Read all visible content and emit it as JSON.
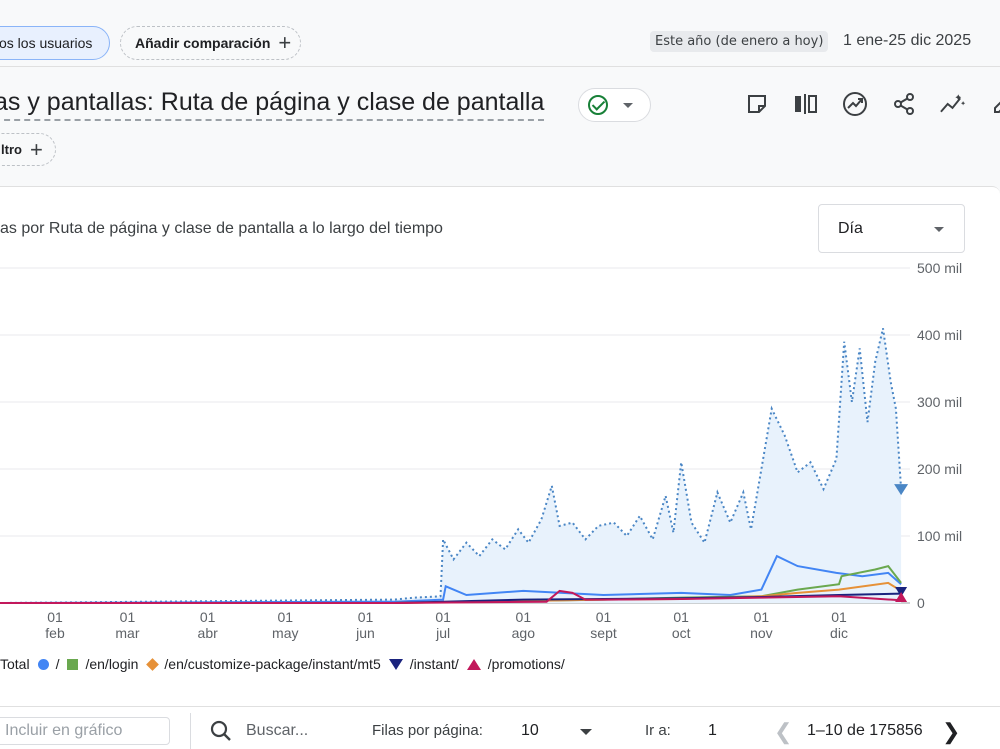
{
  "filters": {
    "segment_label": "os los usuarios",
    "add_comparison_label": "Añadir comparación",
    "date_preset": "Este año (de enero a hoy)",
    "date_range": "1 ene-25 dic 2025"
  },
  "header": {
    "title": "as y pantallas: Ruta de página y clase de pantalla",
    "filter_label": "ltro"
  },
  "toolbar": {
    "icons": [
      "note-icon",
      "compare-icon",
      "insights-icon",
      "share-icon",
      "trend-icon",
      "edit-icon"
    ]
  },
  "card": {
    "title": "as por Ruta de página y clase de pantalla a lo largo del tiempo",
    "granularity": "Día"
  },
  "colors": {
    "total": "#4a86c5",
    "root": "#4285f4",
    "login": "#6aa84f",
    "mt5": "#e69138",
    "instant": "#1a237e",
    "promotions": "#c2185b"
  },
  "chart_data": {
    "type": "line",
    "y_tick_labels": [
      "0",
      "100 mil",
      "200 mil",
      "300 mil",
      "400 mil",
      "500 mil"
    ],
    "ylim": [
      0,
      500000
    ],
    "x_tick_labels": [
      [
        "01",
        "feb"
      ],
      [
        "01",
        "mar"
      ],
      [
        "01",
        "abr"
      ],
      [
        "01",
        "may"
      ],
      [
        "01",
        "jun"
      ],
      [
        "01",
        "jul"
      ],
      [
        "01",
        "ago"
      ],
      [
        "01",
        "sept"
      ],
      [
        "01",
        "oct"
      ],
      [
        "01",
        "nov"
      ],
      [
        "01",
        "dic"
      ]
    ],
    "x_range": [
      "2025-01-01",
      "2025-12-25"
    ],
    "series": [
      {
        "name": "Total",
        "style": "dotted-area",
        "points": [
          [
            "2025-06-12",
            5000
          ],
          [
            "2025-06-20",
            8000
          ],
          [
            "2025-06-30",
            10000
          ],
          [
            "2025-07-01",
            95000
          ],
          [
            "2025-07-05",
            65000
          ],
          [
            "2025-07-10",
            90000
          ],
          [
            "2025-07-15",
            70000
          ],
          [
            "2025-07-20",
            95000
          ],
          [
            "2025-07-25",
            80000
          ],
          [
            "2025-07-30",
            110000
          ],
          [
            "2025-08-03",
            90000
          ],
          [
            "2025-08-08",
            125000
          ],
          [
            "2025-08-12",
            175000
          ],
          [
            "2025-08-15",
            115000
          ],
          [
            "2025-08-20",
            120000
          ],
          [
            "2025-08-25",
            95000
          ],
          [
            "2025-08-30",
            115000
          ],
          [
            "2025-09-05",
            120000
          ],
          [
            "2025-09-10",
            100000
          ],
          [
            "2025-09-15",
            130000
          ],
          [
            "2025-09-20",
            95000
          ],
          [
            "2025-09-25",
            160000
          ],
          [
            "2025-09-28",
            105000
          ],
          [
            "2025-10-01",
            210000
          ],
          [
            "2025-10-05",
            120000
          ],
          [
            "2025-10-10",
            90000
          ],
          [
            "2025-10-15",
            165000
          ],
          [
            "2025-10-20",
            120000
          ],
          [
            "2025-10-25",
            165000
          ],
          [
            "2025-10-28",
            110000
          ],
          [
            "2025-11-01",
            200000
          ],
          [
            "2025-11-05",
            290000
          ],
          [
            "2025-11-10",
            250000
          ],
          [
            "2025-11-15",
            195000
          ],
          [
            "2025-11-20",
            210000
          ],
          [
            "2025-11-25",
            170000
          ],
          [
            "2025-11-30",
            215000
          ],
          [
            "2025-12-03",
            390000
          ],
          [
            "2025-12-06",
            300000
          ],
          [
            "2025-12-09",
            380000
          ],
          [
            "2025-12-12",
            270000
          ],
          [
            "2025-12-15",
            360000
          ],
          [
            "2025-12-18",
            410000
          ],
          [
            "2025-12-21",
            330000
          ],
          [
            "2025-12-23",
            290000
          ],
          [
            "2025-12-25",
            170000
          ]
        ]
      },
      {
        "name": "/",
        "style": "line",
        "points": [
          [
            "2025-06-12",
            2000
          ],
          [
            "2025-07-01",
            5000
          ],
          [
            "2025-07-02",
            25000
          ],
          [
            "2025-07-10",
            12000
          ],
          [
            "2025-08-01",
            18000
          ],
          [
            "2025-09-01",
            12000
          ],
          [
            "2025-10-01",
            15000
          ],
          [
            "2025-10-20",
            12000
          ],
          [
            "2025-11-01",
            20000
          ],
          [
            "2025-11-07",
            70000
          ],
          [
            "2025-11-15",
            55000
          ],
          [
            "2025-11-30",
            45000
          ],
          [
            "2025-12-10",
            40000
          ],
          [
            "2025-12-20",
            45000
          ],
          [
            "2025-12-25",
            28000
          ]
        ]
      },
      {
        "name": "/en/login",
        "style": "line",
        "points": [
          [
            "2025-06-12",
            0
          ],
          [
            "2025-09-01",
            5000
          ],
          [
            "2025-10-01",
            8000
          ],
          [
            "2025-11-01",
            10000
          ],
          [
            "2025-11-15",
            20000
          ],
          [
            "2025-12-01",
            28000
          ],
          [
            "2025-12-02",
            40000
          ],
          [
            "2025-12-15",
            50000
          ],
          [
            "2025-12-20",
            55000
          ],
          [
            "2025-12-25",
            30000
          ]
        ]
      },
      {
        "name": "/en/customize-package/instant/mt5",
        "style": "line",
        "points": [
          [
            "2025-06-12",
            0
          ],
          [
            "2025-08-01",
            3000
          ],
          [
            "2025-09-01",
            5000
          ],
          [
            "2025-10-01",
            6000
          ],
          [
            "2025-11-01",
            10000
          ],
          [
            "2025-11-15",
            15000
          ],
          [
            "2025-12-01",
            20000
          ],
          [
            "2025-12-20",
            30000
          ],
          [
            "2025-12-25",
            18000
          ]
        ]
      },
      {
        "name": "/instant/",
        "style": "line",
        "points": [
          [
            "2025-06-12",
            0
          ],
          [
            "2025-07-01",
            2000
          ],
          [
            "2025-08-01",
            5000
          ],
          [
            "2025-09-01",
            6000
          ],
          [
            "2025-10-01",
            7000
          ],
          [
            "2025-11-01",
            9000
          ],
          [
            "2025-12-01",
            12000
          ],
          [
            "2025-12-25",
            14000
          ]
        ]
      },
      {
        "name": "/promotions/",
        "style": "line",
        "points": [
          [
            "2025-06-12",
            0
          ],
          [
            "2025-08-10",
            2000
          ],
          [
            "2025-08-15",
            18000
          ],
          [
            "2025-08-20",
            15000
          ],
          [
            "2025-08-25",
            5000
          ],
          [
            "2025-09-01",
            5000
          ],
          [
            "2025-10-01",
            6000
          ],
          [
            "2025-11-01",
            8000
          ],
          [
            "2025-12-01",
            10000
          ],
          [
            "2025-12-25",
            4000
          ]
        ]
      }
    ]
  },
  "legend": [
    {
      "label": "Total",
      "marker": "none"
    },
    {
      "label": "/",
      "marker": "circle"
    },
    {
      "label": "/en/login",
      "marker": "square"
    },
    {
      "label": "/en/customize-package/instant/mt5",
      "marker": "diamond"
    },
    {
      "label": "/instant/",
      "marker": "triangle-down"
    },
    {
      "label": "/promotions/",
      "marker": "triangle-up"
    }
  ],
  "table_controls": {
    "include_placeholder": "Incluir en gráfico",
    "search_placeholder": "Buscar...",
    "rows_label": "Filas por página:",
    "rows_value": "10",
    "goto_label": "Ir a:",
    "goto_value": "1",
    "range_text": "1–10 de 175856"
  }
}
